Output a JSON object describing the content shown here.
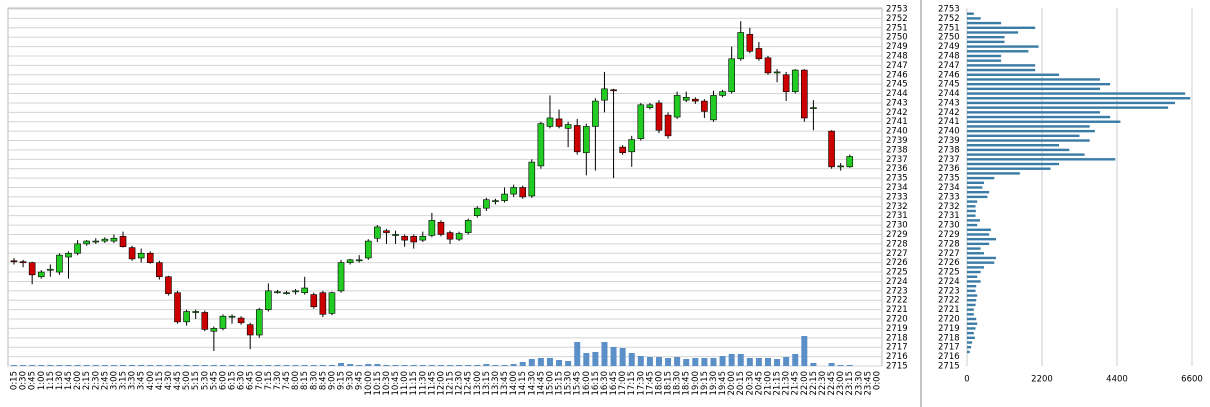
{
  "chart_data": [
    {
      "type": "candlestick",
      "categories": [
        "0:15",
        "0:30",
        "0:45",
        "1:00",
        "1:15",
        "1:30",
        "1:45",
        "2:00",
        "2:15",
        "2:30",
        "2:45",
        "3:00",
        "3:15",
        "3:30",
        "3:45",
        "4:00",
        "4:15",
        "4:30",
        "4:45",
        "5:00",
        "5:15",
        "5:30",
        "5:45",
        "6:00",
        "6:15",
        "6:30",
        "6:45",
        "7:00",
        "7:15",
        "7:30",
        "7:45",
        "8:00",
        "8:15",
        "8:30",
        "8:45",
        "9:00",
        "9:15",
        "9:30",
        "9:45",
        "10:00",
        "10:15",
        "10:30",
        "10:45",
        "11:00",
        "11:15",
        "11:30",
        "11:45",
        "12:00",
        "12:15",
        "12:30",
        "12:45",
        "13:00",
        "13:15",
        "13:30",
        "13:45",
        "14:00",
        "14:15",
        "14:30",
        "14:45",
        "15:00",
        "15:15",
        "15:30",
        "15:45",
        "16:00",
        "16:15",
        "16:30",
        "16:45",
        "17:00",
        "17:15",
        "17:30",
        "17:45",
        "18:00",
        "18:15",
        "18:30",
        "18:45",
        "19:00",
        "19:15",
        "19:30",
        "19:45",
        "20:00",
        "20:15",
        "20:30",
        "20:45",
        "21:00",
        "21:15",
        "21:30",
        "21:45",
        "22:00",
        "22:15",
        "22:30",
        "22:45",
        "23:00",
        "23:15",
        "23:30",
        "23:45",
        "0:00"
      ],
      "open": [
        2726.2,
        2726.1,
        2726,
        2724.5,
        2725.2,
        2725,
        2726.6,
        2727,
        2728,
        2728.3,
        2728.3,
        2728.3,
        2728.8,
        2727.6,
        2726.5,
        2727,
        2726,
        2724.5,
        2722.8,
        2719.7,
        2720.7,
        2720.7,
        2718.7,
        2719,
        2720.2,
        2720.1,
        2719.4,
        2718.3,
        2721,
        2722.9,
        2722.8,
        2722.9,
        2722.8,
        2722.6,
        2722.8,
        2720.6,
        2723,
        2726,
        2726.3,
        2726.5,
        2728.6,
        2729.4,
        2729,
        2728.8,
        2728.8,
        2728.4,
        2728.9,
        2730.3,
        2729.2,
        2728.5,
        2729.2,
        2731,
        2731.8,
        2732.5,
        2732.6,
        2733.3,
        2734,
        2733.1,
        2736.3,
        2740.5,
        2741.3,
        2740.3,
        2740.6,
        2737.7,
        2740.5,
        2743.3,
        2744.4,
        2738.3,
        2737.8,
        2739.2,
        2742.5,
        2743,
        2741.7,
        2741.5,
        2743.3,
        2743.4,
        2743.2,
        2741.2,
        2743.8,
        2744.2,
        2747.7,
        2750.3,
        2748.8,
        2747.8,
        2746.3,
        2746,
        2744.2,
        2746.5,
        2742.5,
        null,
        2740,
        2736.2,
        2736.2,
        null,
        null,
        null
      ],
      "high": [
        2726.5,
        2726.3,
        2726.1,
        2725.2,
        2725.8,
        2727,
        2727.2,
        2728.4,
        2728.4,
        2728.6,
        2728.7,
        2729,
        2729.3,
        2727.8,
        2727.5,
        2727.2,
        2726.2,
        2724.6,
        2723,
        2721,
        2721,
        2720.9,
        2719.2,
        2720.5,
        2720.5,
        2720.3,
        2719.6,
        2721.2,
        2723.8,
        2723.1,
        2723,
        2723.2,
        2724.5,
        2722.8,
        2723,
        2722.9,
        2726.3,
        2726.4,
        2726.8,
        2728.5,
        2730,
        2729.6,
        2729.4,
        2729,
        2729,
        2729.3,
        2731.3,
        2730.5,
        2729.4,
        2729.3,
        2730.7,
        2732,
        2732.9,
        2732.8,
        2734,
        2734.3,
        2734.2,
        2737,
        2741,
        2743.8,
        2742.3,
        2741,
        2741.3,
        2740.8,
        2743.5,
        2746.3,
        2744.5,
        2738.5,
        2739.5,
        2743,
        2743,
        2743.3,
        2742,
        2744.2,
        2744.2,
        2743.6,
        2743.4,
        2744.3,
        2744.4,
        2749,
        2751.7,
        2751,
        2749.5,
        2748,
        2746.6,
        2746.3,
        2746.6,
        2746.6,
        2743.3,
        null,
        2740.1,
        2736.6,
        2737.5,
        null,
        null,
        null
      ],
      "low": [
        2725.8,
        2725.5,
        2723.7,
        2724.3,
        2724.5,
        2724.7,
        2724.3,
        2726.8,
        2727.8,
        2728,
        2728.1,
        2728.1,
        2727.6,
        2726.2,
        2726,
        2725.9,
        2724.2,
        2722.5,
        2719.5,
        2719.3,
        2720,
        2718.7,
        2716.6,
        2718.8,
        2719.5,
        2719.4,
        2716.8,
        2718,
        2720.8,
        2722.7,
        2722.6,
        2722.6,
        2722.6,
        2721.1,
        2720.2,
        2720.4,
        2722.8,
        2725.8,
        2726,
        2726.3,
        2728.2,
        2728,
        2728,
        2727.7,
        2727.5,
        2728.2,
        2728.7,
        2728.8,
        2728,
        2728.3,
        2729,
        2730.8,
        2731.5,
        2732.2,
        2732.4,
        2733,
        2732.8,
        2732.9,
        2736,
        2740.3,
        2740.3,
        2738.3,
        2737.5,
        2735.3,
        2735.8,
        2742,
        2735,
        2737.5,
        2736.2,
        2739,
        2742.3,
        2739.8,
        2739.2,
        2741.3,
        2743.1,
        2742.9,
        2741.4,
        2741,
        2743.6,
        2744,
        2747.5,
        2748.3,
        2747.5,
        2746,
        2745.2,
        2743.2,
        2744,
        2741,
        2740.1,
        null,
        2736,
        2735.8,
        2736.1,
        null,
        null,
        null
      ],
      "close": [
        2726.1,
        2726,
        2724.7,
        2725,
        2725.3,
        2726.8,
        2727,
        2728,
        2728.3,
        2728.3,
        2728.5,
        2728.6,
        2727.7,
        2726.4,
        2727,
        2726,
        2724.5,
        2722.7,
        2719.7,
        2720.8,
        2720.8,
        2718.9,
        2719,
        2720.3,
        2720.3,
        2719.6,
        2718.3,
        2721,
        2723,
        2722.9,
        2722.8,
        2723,
        2723.3,
        2721.3,
        2720.5,
        2722.8,
        2726,
        2726.3,
        2726.3,
        2728.3,
        2729.8,
        2729.2,
        2729,
        2728.4,
        2728.2,
        2728.8,
        2730.5,
        2729,
        2728.5,
        2729.1,
        2730.5,
        2731.8,
        2732.7,
        2732.6,
        2733.3,
        2734,
        2733,
        2736.7,
        2740.8,
        2741.4,
        2740.5,
        2740.7,
        2737.8,
        2740.5,
        2743.2,
        2744.5,
        2744.3,
        2737.7,
        2739.1,
        2742.8,
        2742.8,
        2740.1,
        2739.5,
        2743.8,
        2743.6,
        2743.2,
        2742.1,
        2743.8,
        2744.2,
        2747.7,
        2750.5,
        2748.5,
        2747.7,
        2746.2,
        2746.3,
        2744.2,
        2746.5,
        2741.4,
        2742.5,
        null,
        2736.2,
        2736.3,
        2737.3,
        null,
        null,
        null
      ],
      "volume": [
        1,
        1,
        1,
        1,
        1,
        1,
        1,
        1,
        1,
        1,
        1,
        1,
        1,
        1,
        1,
        1,
        1,
        1,
        1,
        1,
        1,
        1,
        1,
        1,
        1,
        1,
        1,
        1,
        1,
        1,
        1,
        1,
        1,
        1,
        1,
        1,
        3,
        2,
        1,
        2,
        2,
        1,
        1,
        1,
        1,
        1,
        1,
        1,
        1,
        1,
        1,
        1,
        2,
        1,
        1,
        2,
        4,
        7,
        8,
        8,
        6,
        5,
        24,
        13,
        14,
        24,
        19,
        18,
        13,
        10,
        9,
        9,
        8,
        9,
        7,
        8,
        8,
        8,
        10,
        12,
        12,
        8,
        8,
        8,
        7,
        9,
        12,
        30,
        3,
        null,
        3,
        1,
        1,
        null,
        null,
        null
      ],
      "up_color": "#22cc22",
      "down_color": "#cc0000",
      "volume_color": "#5b8fc7",
      "ylim": [
        2715,
        2753
      ],
      "yticks": [
        2715,
        2716,
        2717,
        2718,
        2719,
        2720,
        2721,
        2722,
        2723,
        2724,
        2725,
        2726,
        2727,
        2728,
        2729,
        2730,
        2731,
        2732,
        2733,
        2734,
        2735,
        2736,
        2737,
        2738,
        2739,
        2740,
        2741,
        2742,
        2743,
        2744,
        2745,
        2746,
        2747,
        2748,
        2749,
        2750,
        2751,
        2752,
        2753
      ],
      "grid": true
    },
    {
      "type": "hbar",
      "y": [
        2752.5,
        2752,
        2751.5,
        2751,
        2750.5,
        2750,
        2749.5,
        2749,
        2748.5,
        2748,
        2747.5,
        2747,
        2746.5,
        2746,
        2745.5,
        2745,
        2744.5,
        2744,
        2743.5,
        2743,
        2742.5,
        2742,
        2741.5,
        2741,
        2740.5,
        2740,
        2739.5,
        2739,
        2738.5,
        2738,
        2737.5,
        2737,
        2736.5,
        2736,
        2735.5,
        2735,
        2734.5,
        2734,
        2733.5,
        2733,
        2732.5,
        2732,
        2731.5,
        2731,
        2730.5,
        2730,
        2729.5,
        2729,
        2728.5,
        2728,
        2727.5,
        2727,
        2726.5,
        2726,
        2725.5,
        2725,
        2724.5,
        2724,
        2723.5,
        2723,
        2722.5,
        2722,
        2721.5,
        2721,
        2720.5,
        2720,
        2719.5,
        2719,
        2718.5,
        2718,
        2717.5,
        2717,
        2716.5
      ],
      "values": [
        200,
        400,
        1000,
        2000,
        1500,
        1100,
        1100,
        2100,
        1800,
        1000,
        1000,
        2000,
        2000,
        2700,
        3900,
        4200,
        3900,
        6400,
        6550,
        6100,
        5900,
        3900,
        4200,
        4500,
        3600,
        3750,
        3300,
        3600,
        2700,
        3000,
        3450,
        4350,
        2700,
        2450,
        1550,
        800,
        500,
        450,
        650,
        600,
        300,
        250,
        260,
        250,
        380,
        300,
        700,
        650,
        850,
        650,
        400,
        500,
        850,
        800,
        500,
        400,
        300,
        400,
        270,
        250,
        300,
        270,
        250,
        200,
        200,
        270,
        300,
        250,
        200,
        230,
        150,
        120,
        80
      ],
      "color": "#3a7ca5",
      "xlim": [
        0,
        6600
      ],
      "xticks": [
        0,
        2200,
        4400,
        6600
      ],
      "ylim": [
        2715,
        2753
      ],
      "yticks": [
        2715,
        2716,
        2717,
        2718,
        2719,
        2720,
        2721,
        2722,
        2723,
        2724,
        2725,
        2726,
        2727,
        2728,
        2729,
        2730,
        2731,
        2732,
        2733,
        2734,
        2735,
        2736,
        2737,
        2738,
        2739,
        2740,
        2741,
        2742,
        2743,
        2744,
        2745,
        2746,
        2747,
        2748,
        2749,
        2750,
        2751,
        2752,
        2753
      ],
      "grid": true
    }
  ]
}
